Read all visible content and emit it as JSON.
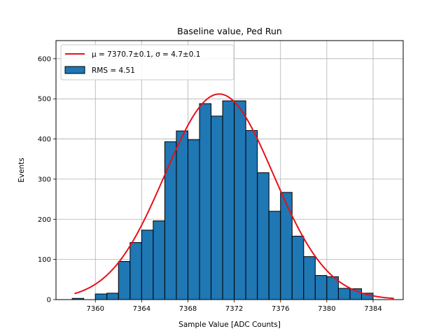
{
  "chart_data": {
    "type": "bar",
    "title": "Baseline value, Ped Run",
    "xlabel": "Sample Value [ADC Counts]",
    "ylabel": "Events",
    "xlim": [
      7356.6,
      7386.6
    ],
    "ylim": [
      0,
      645
    ],
    "xticks": [
      7360,
      7364,
      7368,
      7372,
      7376,
      7380,
      7384
    ],
    "yticks": [
      0,
      100,
      200,
      300,
      400,
      500,
      600
    ],
    "grid": true,
    "legend_position": "upper-left",
    "bar_color": "#1f77b4",
    "fit_color": "#e8101a",
    "bin_width": 1.0,
    "bins": {
      "left_edges": [
        7358,
        7359,
        7360,
        7361,
        7362,
        7363,
        7364,
        7365,
        7366,
        7367,
        7368,
        7369,
        7370,
        7371,
        7372,
        7373,
        7374,
        7375,
        7376,
        7377,
        7378,
        7379,
        7380,
        7381,
        7382,
        7383,
        7384,
        7385
      ],
      "counts": [
        3,
        0,
        14,
        16,
        95,
        142,
        173,
        196,
        393,
        420,
        398,
        488,
        457,
        495,
        495,
        421,
        316,
        220,
        267,
        158,
        107,
        60,
        57,
        28,
        27,
        16,
        0,
        0
      ]
    },
    "fit": {
      "type": "gaussian",
      "mu": 7370.7,
      "sigma": 4.7,
      "amplitude": 512,
      "x_range": [
        7358.2,
        7385.8
      ]
    },
    "legend": [
      {
        "label": "μ = 7370.7±0.1, σ = 4.7±0.1",
        "kind": "line"
      },
      {
        "label": "RMS = 4.51",
        "kind": "patch"
      }
    ]
  }
}
